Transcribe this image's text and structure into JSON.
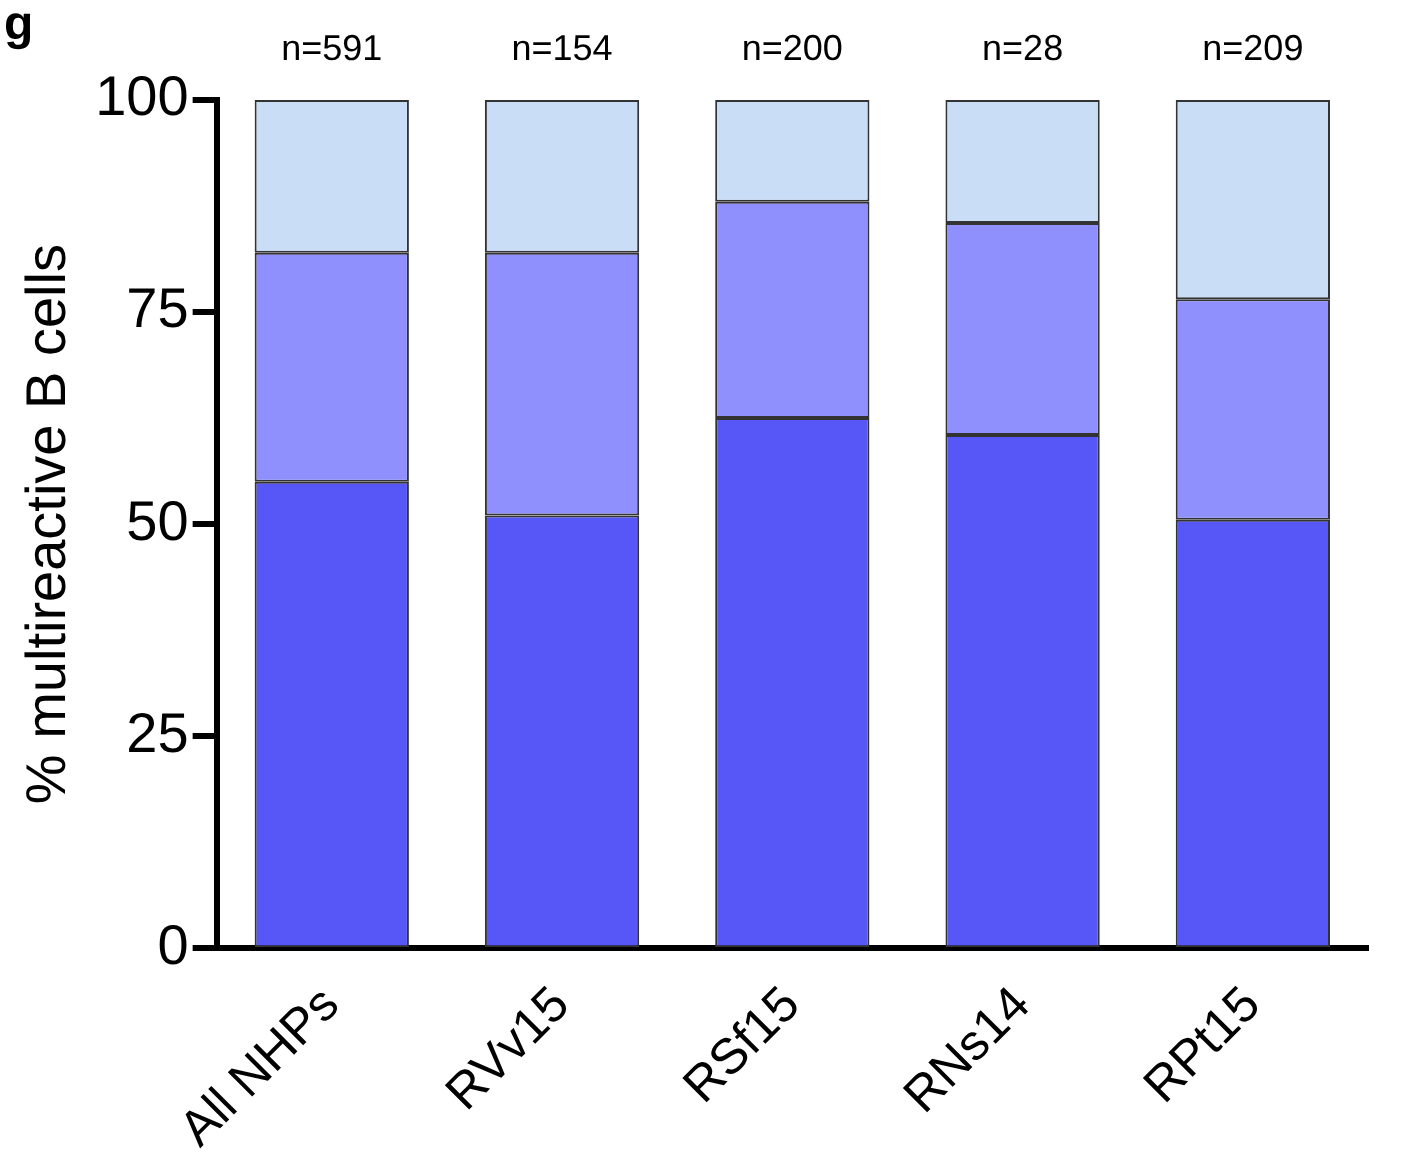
{
  "chart_data": {
    "type": "bar",
    "stacked": true,
    "ylabel": "% multireactive B cells",
    "categories": [
      "All NHPs",
      "RVv15",
      "RSf15",
      "RNs14",
      "RPt15"
    ],
    "series": [
      {
        "color": "#5757f8",
        "values": [
          55,
          51,
          62.5,
          60.5,
          50.5
        ]
      },
      {
        "color": "#8f8ffe",
        "values": [
          27,
          31,
          25.5,
          25,
          26
        ]
      },
      {
        "color": "#c9ddf7",
        "values": [
          18,
          18,
          12,
          14.5,
          23.5
        ]
      }
    ],
    "ylim": [
      0,
      100
    ],
    "yticks": [
      0,
      25,
      50,
      75,
      100
    ],
    "grid": false,
    "legend": false,
    "annotations": [
      "g",
      "n=591",
      "n=154",
      "n=200",
      "n=28",
      "n=209"
    ]
  }
}
